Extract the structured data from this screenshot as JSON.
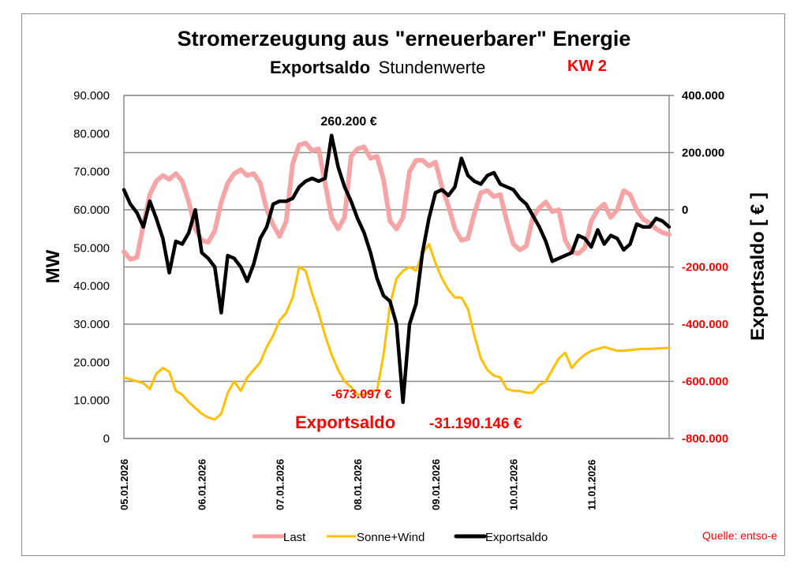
{
  "chart_data": {
    "type": "line",
    "title": "Stromerzeugung aus \"erneuerbarer\" Energie",
    "subtitle_bold": "Exportsaldo",
    "subtitle_normal": "Stundenwerte",
    "week_label": "KW 2",
    "ylabel_left": "MW",
    "ylabel_right": "Exportsaldo [ € ]",
    "ylim_left": [
      0,
      90000
    ],
    "ylim_right": [
      -800000,
      400000
    ],
    "yticks_left": [
      "0",
      "10.000",
      "20.000",
      "30.000",
      "40.000",
      "50.000",
      "60.000",
      "70.000",
      "80.000",
      "90.000"
    ],
    "yticks_right": [
      "-800.000",
      "-600.000",
      "-400.000",
      "-200.000",
      "0",
      "200.000",
      "400.000"
    ],
    "grid": "horizontal, right axis",
    "x_unit": "hours since 05.01.2026 00:00",
    "xlim": [
      0,
      168
    ],
    "xticks": [
      {
        "h": 0,
        "label": "05.01.2026"
      },
      {
        "h": 24,
        "label": "06.01.2026"
      },
      {
        "h": 48,
        "label": "07.01.2026"
      },
      {
        "h": 72,
        "label": "08.01.2026"
      },
      {
        "h": 96,
        "label": "09.01.2026"
      },
      {
        "h": 120,
        "label": "10.01.2026"
      },
      {
        "h": 144,
        "label": "11.01.2026"
      }
    ],
    "legend": [
      "Last",
      "Sonne+Wind",
      "Exportsaldo"
    ],
    "legend_position": "bottom",
    "colors": {
      "Last": "#f4a0a0",
      "Sonne+Wind": "#ffc000",
      "Exportsaldo": "#000000",
      "negative_ticks": "#ff0000"
    },
    "series": [
      {
        "name": "Last",
        "axis": "left",
        "x": [
          0,
          2,
          4,
          6,
          8,
          10,
          12,
          14,
          16,
          18,
          20,
          22,
          24,
          26,
          28,
          30,
          32,
          34,
          36,
          38,
          40,
          42,
          44,
          46,
          48,
          50,
          52,
          54,
          56,
          58,
          60,
          62,
          64,
          66,
          68,
          70,
          72,
          74,
          76,
          78,
          80,
          82,
          84,
          86,
          88,
          90,
          92,
          94,
          96,
          98,
          100,
          102,
          104,
          106,
          108,
          110,
          112,
          114,
          116,
          118,
          120,
          122,
          124,
          126,
          128,
          130,
          132,
          134,
          136,
          138,
          140,
          142,
          144,
          146,
          148,
          150,
          152,
          154,
          156,
          158,
          160,
          162,
          164,
          166,
          168
        ],
        "y": [
          49000,
          47000,
          47500,
          56000,
          64000,
          67500,
          69000,
          68000,
          69500,
          67500,
          62000,
          55000,
          52000,
          51500,
          54500,
          62000,
          67000,
          69500,
          70500,
          69000,
          69500,
          67000,
          60000,
          56000,
          53000,
          57000,
          72000,
          77000,
          77500,
          75500,
          76000,
          67000,
          58000,
          55000,
          58000,
          74000,
          76000,
          76500,
          73500,
          74000,
          68000,
          57000,
          55000,
          58000,
          70000,
          73000,
          73000,
          71500,
          72500,
          66000,
          61000,
          55000,
          52000,
          52500,
          59000,
          64500,
          65000,
          63500,
          64000,
          57000,
          51000,
          49500,
          50500,
          58000,
          60500,
          62000,
          59500,
          60000,
          52000,
          49000,
          48500,
          50000,
          57000,
          60000,
          61500,
          58000,
          60000,
          65000,
          64000,
          60000,
          57500,
          56500,
          55000,
          54000,
          53500
        ]
      },
      {
        "name": "Sonne+Wind",
        "axis": "left",
        "x": [
          0,
          2,
          4,
          6,
          8,
          10,
          12,
          14,
          16,
          18,
          20,
          22,
          24,
          26,
          28,
          30,
          32,
          34,
          36,
          38,
          40,
          42,
          44,
          46,
          48,
          50,
          52,
          54,
          56,
          58,
          60,
          62,
          64,
          66,
          68,
          70,
          72,
          74,
          76,
          78,
          80,
          82,
          84,
          86,
          88,
          90,
          92,
          94,
          96,
          98,
          100,
          102,
          104,
          106,
          108,
          110,
          112,
          114,
          116,
          118,
          120,
          122,
          124,
          126,
          128,
          130,
          132,
          134,
          136,
          138,
          140,
          142,
          144,
          146,
          148,
          150,
          152,
          154,
          156,
          158,
          160,
          162,
          164,
          166,
          168
        ],
        "y": [
          16000,
          15500,
          15000,
          14500,
          13000,
          17000,
          18500,
          17500,
          12500,
          11500,
          9500,
          8000,
          6500,
          5500,
          5000,
          6500,
          12000,
          15000,
          12500,
          16000,
          18000,
          20000,
          24000,
          27000,
          31000,
          33000,
          37000,
          45000,
          44000,
          38000,
          33000,
          27000,
          22000,
          18000,
          15000,
          13500,
          11500,
          11500,
          12500,
          12500,
          22000,
          35000,
          42000,
          44000,
          45000,
          44000,
          48500,
          51000,
          46000,
          42000,
          39000,
          37000,
          37000,
          34000,
          27000,
          21000,
          18000,
          16500,
          16000,
          13000,
          12500,
          12500,
          12000,
          12000,
          14000,
          15000,
          18000,
          21000,
          22500,
          18500,
          20500,
          22000,
          23000,
          23500,
          24000,
          23500,
          23000,
          23000,
          23200,
          23400,
          23500,
          23500,
          23600,
          23700,
          23800
        ]
      },
      {
        "name": "Exportsaldo",
        "axis": "right",
        "x": [
          0,
          2,
          4,
          6,
          8,
          10,
          12,
          14,
          16,
          18,
          20,
          22,
          24,
          26,
          28,
          30,
          32,
          34,
          36,
          38,
          40,
          42,
          44,
          46,
          48,
          50,
          52,
          54,
          56,
          58,
          60,
          62,
          64,
          66,
          68,
          70,
          72,
          74,
          76,
          78,
          80,
          82,
          84,
          86,
          88,
          90,
          92,
          94,
          96,
          98,
          100,
          102,
          104,
          106,
          108,
          110,
          112,
          114,
          116,
          118,
          120,
          122,
          124,
          126,
          128,
          130,
          132,
          134,
          136,
          138,
          140,
          142,
          144,
          146,
          148,
          150,
          152,
          154,
          156,
          158,
          160,
          162,
          164,
          166,
          168
        ],
        "y": [
          70000,
          20000,
          -10000,
          -60000,
          30000,
          -30000,
          -100000,
          -220000,
          -110000,
          -120000,
          -80000,
          0,
          -150000,
          -170000,
          -200000,
          -360000,
          -160000,
          -170000,
          -200000,
          -250000,
          -190000,
          -100000,
          -60000,
          20000,
          30000,
          30000,
          40000,
          80000,
          100000,
          110000,
          100000,
          110000,
          260200,
          150000,
          80000,
          30000,
          -30000,
          -80000,
          -150000,
          -240000,
          -300000,
          -320000,
          -400000,
          -673097,
          -400000,
          -330000,
          -150000,
          -30000,
          60000,
          70000,
          50000,
          80000,
          180000,
          120000,
          100000,
          90000,
          120000,
          130000,
          90000,
          80000,
          70000,
          40000,
          20000,
          -20000,
          -60000,
          -110000,
          -180000,
          -170000,
          -160000,
          -150000,
          -90000,
          -100000,
          -130000,
          -70000,
          -120000,
          -90000,
          -100000,
          -140000,
          -120000,
          -50000,
          -60000,
          -60000,
          -30000,
          -40000,
          -60000
        ]
      }
    ],
    "annotations": {
      "max_label": "260.200 €",
      "min_label": "-673.097 €",
      "total_label": "Exportsaldo",
      "total_value": "-31.190.146 €"
    },
    "source": "Quelle: entso-e"
  }
}
